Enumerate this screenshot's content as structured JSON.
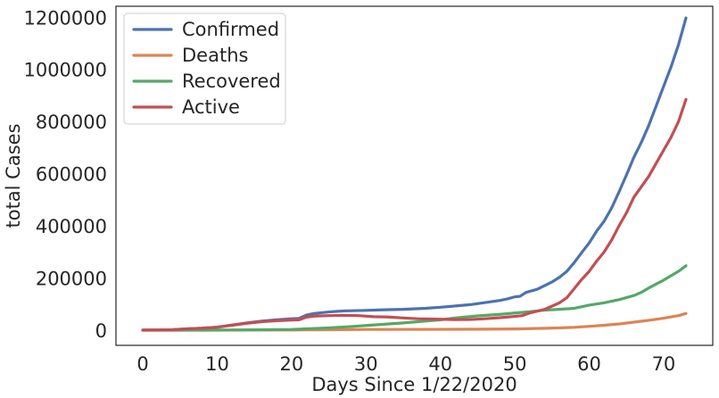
{
  "chart_data": {
    "type": "line",
    "title": "",
    "xlabel": "Days Since 1/22/2020",
    "ylabel": "total Cases",
    "xlim": [
      -3.6,
      76.6
    ],
    "ylim": [
      -58000,
      1242000
    ],
    "xticks": [
      0,
      10,
      20,
      30,
      40,
      50,
      60,
      70
    ],
    "yticks": [
      0,
      200000,
      400000,
      600000,
      800000,
      1000000,
      1200000
    ],
    "grid": false,
    "legend_position": "top-left",
    "series": [
      {
        "name": "Confirmed",
        "color": "#4c72b0",
        "points": [
          [
            0,
            555
          ],
          [
            2,
            940
          ],
          [
            4,
            2000
          ],
          [
            6,
            5600
          ],
          [
            8,
            8000
          ],
          [
            10,
            12000
          ],
          [
            12,
            20000
          ],
          [
            14,
            28000
          ],
          [
            16,
            35000
          ],
          [
            18,
            40000
          ],
          [
            20,
            44000
          ],
          [
            21,
            45000
          ],
          [
            22,
            58000
          ],
          [
            23,
            64000
          ],
          [
            25,
            70000
          ],
          [
            27,
            74000
          ],
          [
            30,
            76000
          ],
          [
            32,
            78000
          ],
          [
            35,
            80000
          ],
          [
            38,
            84000
          ],
          [
            40,
            88000
          ],
          [
            42,
            93000
          ],
          [
            44,
            98000
          ],
          [
            46,
            106000
          ],
          [
            48,
            114000
          ],
          [
            49,
            120000
          ],
          [
            50,
            128000
          ],
          [
            50.7,
            130000
          ],
          [
            51.5,
            145000
          ],
          [
            53,
            157000
          ],
          [
            55,
            185000
          ],
          [
            56,
            203000
          ],
          [
            57,
            226000
          ],
          [
            58,
            260000
          ],
          [
            59,
            298000
          ],
          [
            60,
            335000
          ],
          [
            61,
            380000
          ],
          [
            62,
            418000
          ],
          [
            63,
            468000
          ],
          [
            64,
            530000
          ],
          [
            65,
            595000
          ],
          [
            66,
            663000
          ],
          [
            67,
            720000
          ],
          [
            68,
            785000
          ],
          [
            69,
            860000
          ],
          [
            70,
            935000
          ],
          [
            71,
            1010000
          ],
          [
            72,
            1095000
          ],
          [
            73,
            1197000
          ]
        ]
      },
      {
        "name": "Deaths",
        "color": "#dd8452",
        "points": [
          [
            0,
            17
          ],
          [
            10,
            260
          ],
          [
            20,
            1000
          ],
          [
            30,
            3000
          ],
          [
            40,
            3300
          ],
          [
            46,
            4000
          ],
          [
            50,
            4800
          ],
          [
            54,
            7500
          ],
          [
            56,
            9000
          ],
          [
            58,
            11000
          ],
          [
            60,
            15000
          ],
          [
            62,
            19000
          ],
          [
            64,
            24000
          ],
          [
            66,
            31000
          ],
          [
            68,
            38000
          ],
          [
            70,
            46000
          ],
          [
            72,
            56000
          ],
          [
            73,
            64000
          ]
        ]
      },
      {
        "name": "Recovered",
        "color": "#55a868",
        "points": [
          [
            0,
            28
          ],
          [
            10,
            500
          ],
          [
            15,
            1500
          ],
          [
            20,
            3000
          ],
          [
            22,
            5500
          ],
          [
            25,
            9000
          ],
          [
            28,
            14000
          ],
          [
            30,
            18000
          ],
          [
            32,
            22000
          ],
          [
            35,
            28000
          ],
          [
            38,
            35000
          ],
          [
            40,
            40000
          ],
          [
            42,
            47000
          ],
          [
            45,
            55000
          ],
          [
            48,
            61000
          ],
          [
            50,
            66000
          ],
          [
            52,
            71000
          ],
          [
            54,
            77000
          ],
          [
            56,
            80000
          ],
          [
            58,
            84000
          ],
          [
            60,
            96000
          ],
          [
            62,
            105000
          ],
          [
            64,
            117000
          ],
          [
            66,
            133000
          ],
          [
            67,
            145000
          ],
          [
            68,
            162000
          ],
          [
            70,
            192000
          ],
          [
            72,
            226000
          ],
          [
            73,
            247000
          ]
        ]
      },
      {
        "name": "Active",
        "color": "#c44e52",
        "points": [
          [
            0,
            510
          ],
          [
            2,
            880
          ],
          [
            4,
            1900
          ],
          [
            6,
            5400
          ],
          [
            8,
            7600
          ],
          [
            10,
            11300
          ],
          [
            12,
            19000
          ],
          [
            14,
            26500
          ],
          [
            16,
            32500
          ],
          [
            18,
            36500
          ],
          [
            20,
            39000
          ],
          [
            21,
            39800
          ],
          [
            22,
            50000
          ],
          [
            23,
            54000
          ],
          [
            25,
            56000
          ],
          [
            27,
            57000
          ],
          [
            29,
            56000
          ],
          [
            31,
            52000
          ],
          [
            33,
            50500
          ],
          [
            35,
            47000
          ],
          [
            37,
            44000
          ],
          [
            40,
            42000
          ],
          [
            42,
            40500
          ],
          [
            44,
            41000
          ],
          [
            46,
            44000
          ],
          [
            48,
            48000
          ],
          [
            50,
            53000
          ],
          [
            51,
            56000
          ],
          [
            52,
            66000
          ],
          [
            54,
            80000
          ],
          [
            56,
            105000
          ],
          [
            57,
            125000
          ],
          [
            58,
            160000
          ],
          [
            59,
            195000
          ],
          [
            60,
            226000
          ],
          [
            61,
            265000
          ],
          [
            62,
            300000
          ],
          [
            63,
            345000
          ],
          [
            64,
            400000
          ],
          [
            65,
            450000
          ],
          [
            66,
            510000
          ],
          [
            67,
            550000
          ],
          [
            68,
            590000
          ],
          [
            69,
            640000
          ],
          [
            70,
            690000
          ],
          [
            71,
            740000
          ],
          [
            72,
            800000
          ],
          [
            73,
            885000
          ]
        ]
      }
    ]
  }
}
